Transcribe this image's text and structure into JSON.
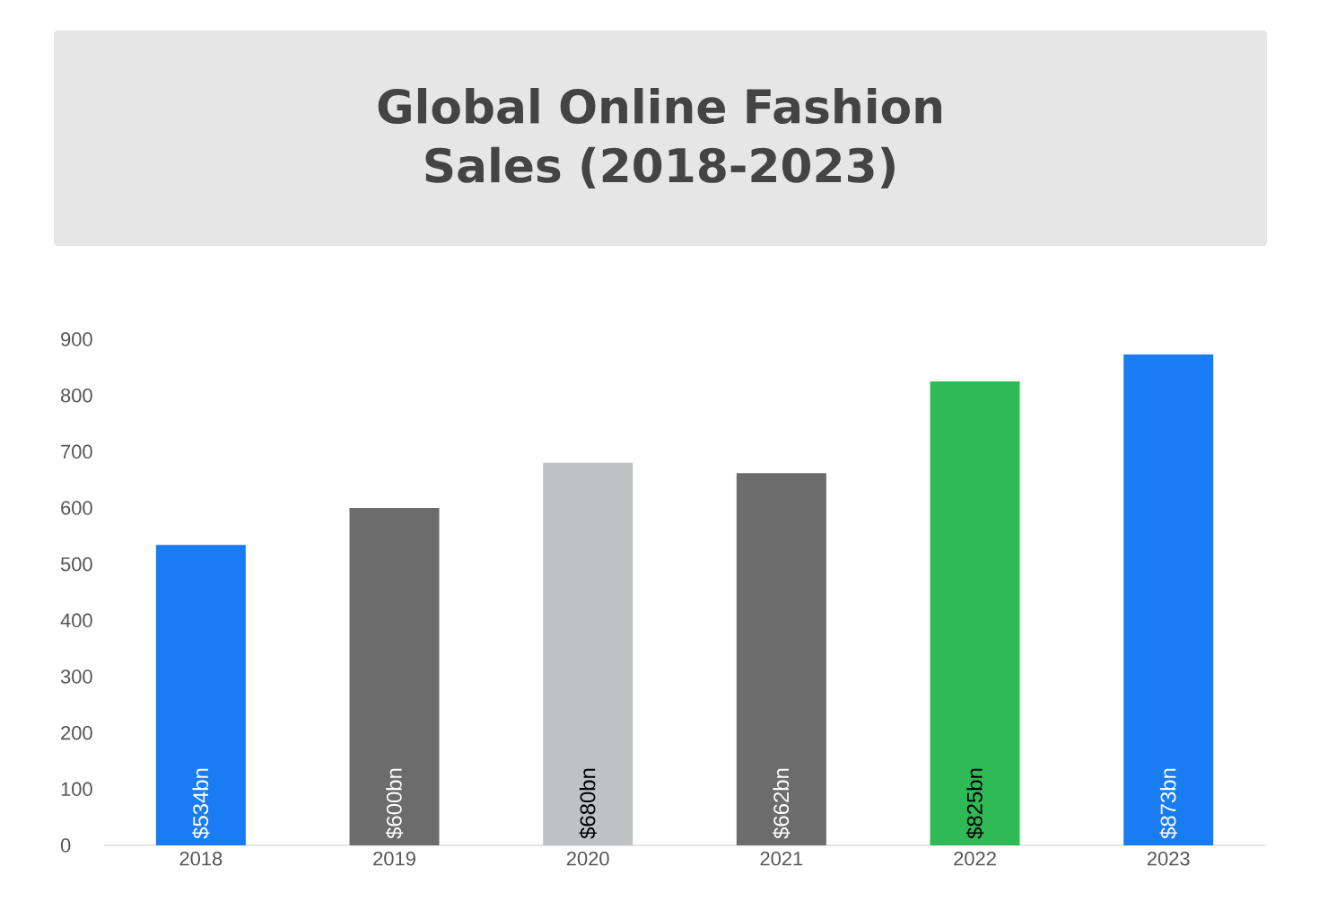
{
  "chart_data": {
    "type": "bar",
    "title": "Global Online Fashion Sales (2018-2023)",
    "categories": [
      "2018",
      "2019",
      "2020",
      "2021",
      "2022",
      "2023"
    ],
    "values": [
      534,
      600,
      680,
      662,
      825,
      873
    ],
    "value_labels": [
      "$534bn",
      "$600bn",
      "$680bn",
      "$662bn",
      "$825bn",
      "$873bn"
    ],
    "colors": [
      "#1a7cf5",
      "#6b6c6b",
      "#bfc1c3",
      "#6b6c6b",
      "#2fba55",
      "#1a7cf5"
    ],
    "ylim": [
      0,
      900
    ],
    "yticks": [
      0,
      100,
      200,
      300,
      400,
      500,
      600,
      700,
      800,
      900
    ],
    "grid": false
  }
}
